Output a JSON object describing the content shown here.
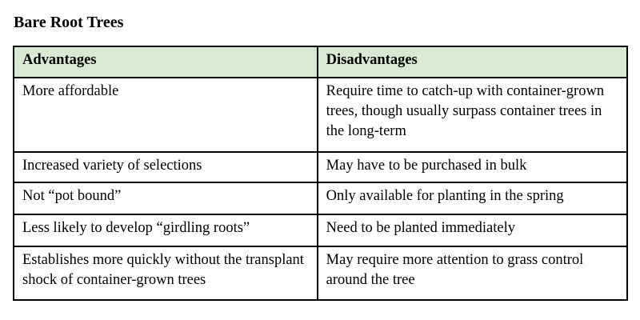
{
  "page": {
    "title": "Bare Root Trees"
  },
  "table": {
    "columns": [
      {
        "label": "Advantages"
      },
      {
        "label": "Disadvantages"
      }
    ],
    "rows": [
      {
        "advantage": "More affordable",
        "disadvantage": "Require time to catch-up with container-grown trees, though usually surpass container trees in the long-term"
      },
      {
        "advantage": "Increased variety of selections",
        "disadvantage": "May have to be purchased in bulk"
      },
      {
        "advantage": "Not “pot bound”",
        "disadvantage": "Only available for planting in the spring"
      },
      {
        "advantage": "Less likely to develop “girdling roots”",
        "disadvantage": "Need to be planted immediately"
      },
      {
        "advantage": "Establishes more quickly without the transplant shock of container-grown trees",
        "disadvantage": "May require more attention to grass control around the tree"
      }
    ],
    "colors": {
      "header_bg": "#d9ead3",
      "border": "#000000",
      "text": "#000000"
    }
  }
}
